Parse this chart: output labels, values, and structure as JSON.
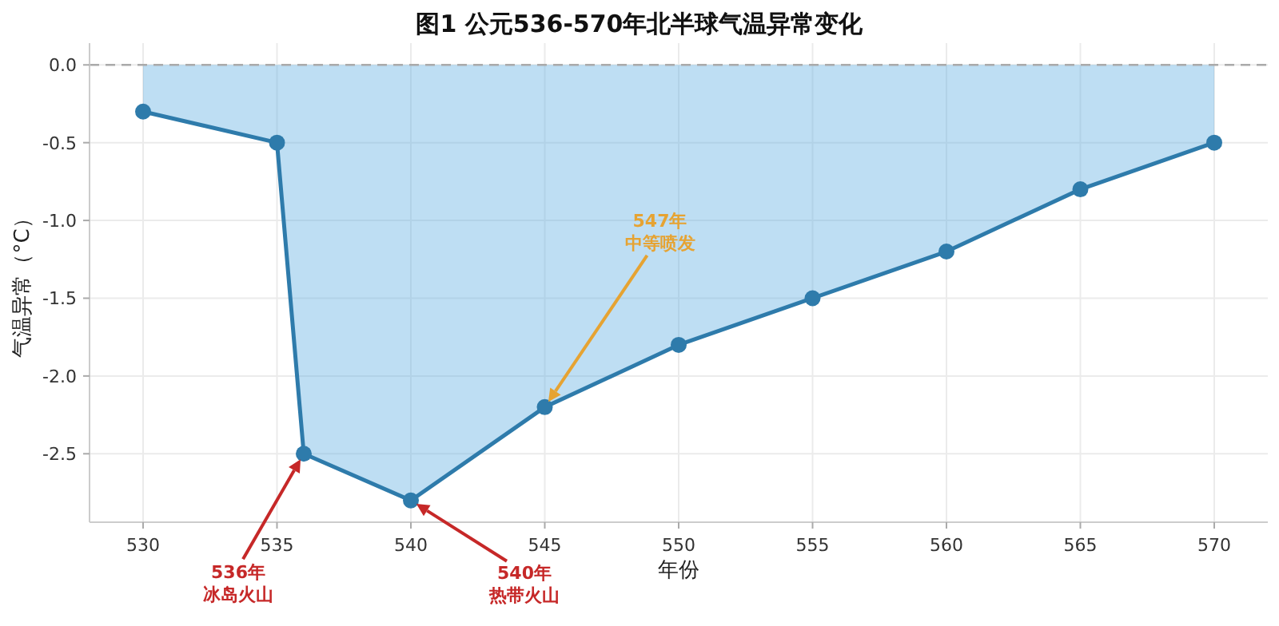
{
  "chart_data": {
    "type": "area",
    "title": "图1  公元536-570年北半球气温异常变化",
    "xlabel": "年份",
    "ylabel": "气温异常（°C）",
    "x": [
      530,
      535,
      536,
      540,
      545,
      550,
      555,
      560,
      565,
      570
    ],
    "series": [
      {
        "color": "#2e7bab",
        "values": [
          -0.3,
          -0.5,
          -2.5,
          -2.8,
          -2.2,
          -1.8,
          -1.5,
          -1.2,
          -0.8,
          -0.5
        ]
      }
    ],
    "xlim": [
      528,
      572
    ],
    "ylim": [
      -2.94,
      0.14
    ],
    "xticks": [
      530,
      535,
      540,
      545,
      550,
      555,
      560,
      565,
      570
    ],
    "yticks": [
      {
        "value": 0,
        "label": "0.0"
      },
      {
        "value": -0.5,
        "label": "-0.5"
      },
      {
        "value": -1,
        "label": "-1.0"
      },
      {
        "value": -1.5,
        "label": "-1.5"
      },
      {
        "value": -2,
        "label": "-2.0"
      },
      {
        "value": -2.5,
        "label": "-2.5"
      }
    ],
    "grid": true,
    "marker": "circle",
    "ref_lines": [
      {
        "axis": "y",
        "value": 0,
        "color": "#aaaaaa",
        "line_style": "dashed"
      }
    ],
    "annotations": [
      "536年",
      "冰岛火山",
      "540年",
      "热带火山",
      "547年",
      "中等喷发"
    ]
  }
}
